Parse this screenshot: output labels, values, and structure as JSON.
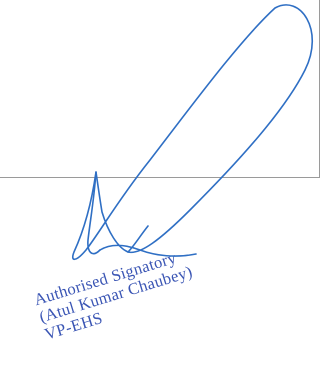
{
  "stamp": {
    "line1": "Authorised Signatory",
    "line2": "(Atul Kumar Chaubey)",
    "line3": "VP-EHS"
  },
  "colors": {
    "ink": "#3a55b4",
    "signature": "#2f6fc4",
    "border": "#9a9a9a"
  },
  "icons": [
    "handwritten-signature"
  ]
}
